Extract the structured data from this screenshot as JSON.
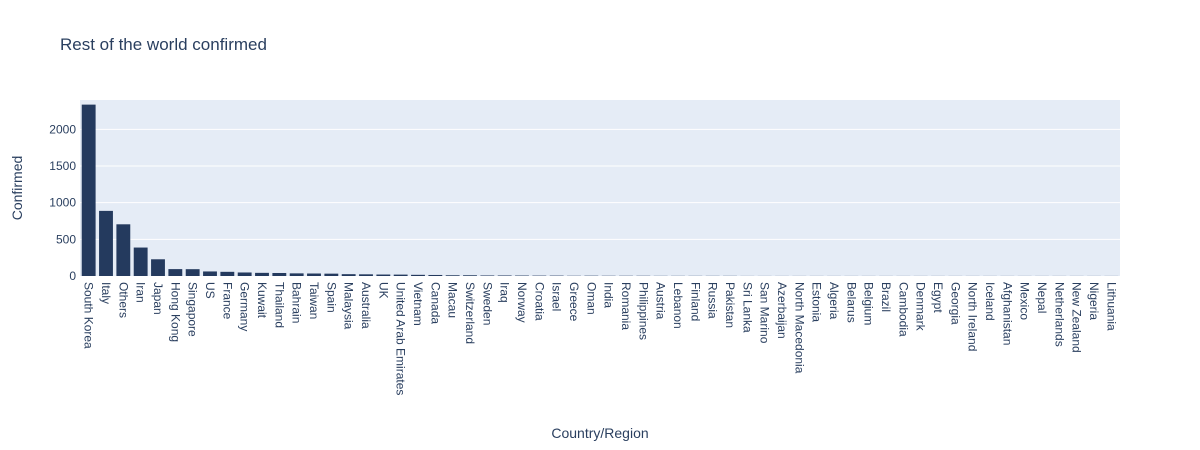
{
  "chart_data": {
    "type": "bar",
    "title": "Rest of the world confirmed",
    "xlabel": "Country/Region",
    "ylabel": "Confirmed",
    "ylim": [
      0,
      2400
    ],
    "yticks": [
      0,
      500,
      1000,
      1500,
      2000
    ],
    "grid": true,
    "bar_color": "#243a5e",
    "plot_bg": "#e5ecf6",
    "categories": [
      "South Korea",
      "Italy",
      "Others",
      "Iran",
      "Japan",
      "Hong Kong",
      "Singapore",
      "US",
      "France",
      "Germany",
      "Kuwait",
      "Thailand",
      "Bahrain",
      "Taiwan",
      "Spain",
      "Malaysia",
      "Australia",
      "UK",
      "United Arab Emirates",
      "Vietnam",
      "Canada",
      "Macau",
      "Switzerland",
      "Sweden",
      "Iraq",
      "Norway",
      "Croatia",
      "Israel",
      "Greece",
      "Oman",
      "India",
      "Romania",
      "Philippines",
      "Austria",
      "Lebanon",
      "Finland",
      "Russia",
      "Pakistan",
      "Sri Lanka",
      "San Marino",
      "Azerbaijan",
      "North Macedonia",
      "Estonia",
      "Algeria",
      "Belarus",
      "Belgium",
      "Brazil",
      "Cambodia",
      "Denmark",
      "Egypt",
      "Georgia",
      "North Ireland",
      "Iceland",
      "Afghanistan",
      "Mexico",
      "Nepal",
      "Netherlands",
      "New Zealand",
      "Nigeria",
      "Lithuania"
    ],
    "values": [
      2337,
      888,
      705,
      388,
      228,
      94,
      93,
      62,
      57,
      48,
      43,
      41,
      36,
      34,
      32,
      25,
      23,
      20,
      19,
      16,
      14,
      10,
      10,
      7,
      7,
      6,
      5,
      5,
      3,
      4,
      3,
      3,
      3,
      2,
      2,
      2,
      2,
      2,
      1,
      1,
      1,
      1,
      1,
      1,
      1,
      1,
      1,
      1,
      1,
      1,
      1,
      1,
      1,
      1,
      1,
      1,
      1,
      1,
      1,
      1
    ]
  }
}
